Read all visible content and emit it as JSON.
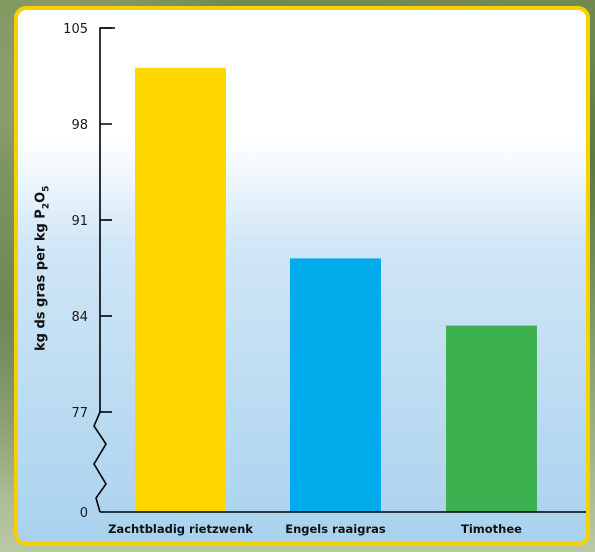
{
  "chart_data": {
    "type": "bar",
    "categories": [
      "Zachtbladig rietzwenk",
      "Engels raaigras",
      "Timothee"
    ],
    "values": [
      102.1,
      88.2,
      83.3
    ],
    "ylabel_parts": [
      "kg ds gras per kg P",
      "2",
      "O",
      "5"
    ],
    "xlabel": "",
    "title": "",
    "yticks": [
      105,
      98,
      91,
      84,
      77,
      0
    ],
    "ylim": [
      0,
      105
    ],
    "axis_break_between": [
      0,
      77
    ],
    "grid": false,
    "bar_colors": [
      "#ffd700",
      "#00abec",
      "#3db04f"
    ]
  }
}
